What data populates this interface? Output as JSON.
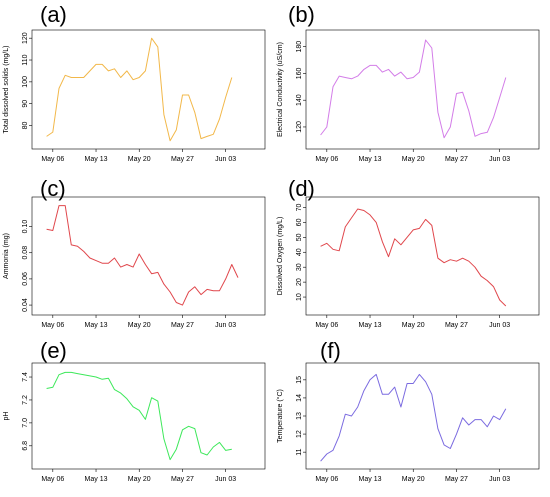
{
  "colors": {
    "a": "#f2b84a",
    "b": "#d37de8",
    "c": "#e0474c",
    "d": "#e0474c",
    "e": "#3de85a",
    "f": "#7b6be0"
  },
  "chart_data": [
    {
      "id": "a",
      "type": "line",
      "panel_label": "(a)",
      "title": "",
      "xlabel": "",
      "ylabel": "Total dissolved solids (mg/L)",
      "x_ticks": [
        "May 06",
        "May 13",
        "May 20",
        "May 27",
        "Jun 03"
      ],
      "y_ticks": [
        "80",
        "90",
        "100",
        "110",
        "120"
      ],
      "xlim": [
        -2.4,
        33.4
      ],
      "ylim": [
        72,
        121
      ],
      "grid": false,
      "series": [
        {
          "values": [
            {
              "x": -1.0,
              "y": 75
            },
            {
              "x": 0.0,
              "y": 77
            },
            {
              "x": 1.0,
              "y": 97
            },
            {
              "x": 2.0,
              "y": 103
            },
            {
              "x": 3.0,
              "y": 102
            },
            {
              "x": 4.0,
              "y": 102
            },
            {
              "x": 5.0,
              "y": 102
            },
            {
              "x": 6.0,
              "y": 105
            },
            {
              "x": 7.0,
              "y": 108
            },
            {
              "x": 8.0,
              "y": 108
            },
            {
              "x": 9.0,
              "y": 105
            },
            {
              "x": 10.0,
              "y": 106
            },
            {
              "x": 11.0,
              "y": 102
            },
            {
              "x": 12.0,
              "y": 105
            },
            {
              "x": 13.0,
              "y": 101
            },
            {
              "x": 14.0,
              "y": 102
            },
            {
              "x": 15.0,
              "y": 105
            },
            {
              "x": 16.0,
              "y": 120
            },
            {
              "x": 17.0,
              "y": 116
            },
            {
              "x": 18.0,
              "y": 85
            },
            {
              "x": 19.0,
              "y": 73
            },
            {
              "x": 20.0,
              "y": 78
            },
            {
              "x": 21.0,
              "y": 94
            },
            {
              "x": 22.0,
              "y": 94
            },
            {
              "x": 23.0,
              "y": 86
            },
            {
              "x": 24.0,
              "y": 74
            },
            {
              "x": 25.0,
              "y": 75
            },
            {
              "x": 26.0,
              "y": 76
            },
            {
              "x": 27.0,
              "y": 83
            },
            {
              "x": 28.0,
              "y": 93
            },
            {
              "x": 29.0,
              "y": 102
            }
          ]
        }
      ]
    },
    {
      "id": "b",
      "type": "line",
      "panel_label": "(b)",
      "title": "",
      "xlabel": "",
      "ylabel": "Electrical Conductivity (uS/cm)",
      "x_ticks": [
        "May 06",
        "May 13",
        "May 20",
        "May 27",
        "Jun 03"
      ],
      "y_ticks": [
        "120",
        "140",
        "160",
        "180"
      ],
      "xlim": [
        -2.4,
        33.4
      ],
      "ylim": [
        108,
        188
      ],
      "grid": false,
      "series": [
        {
          "values": [
            {
              "x": -1.0,
              "y": 114
            },
            {
              "x": 0.0,
              "y": 120
            },
            {
              "x": 1.0,
              "y": 150
            },
            {
              "x": 2.0,
              "y": 158
            },
            {
              "x": 3.0,
              "y": 157
            },
            {
              "x": 4.0,
              "y": 156
            },
            {
              "x": 5.0,
              "y": 158
            },
            {
              "x": 6.0,
              "y": 163
            },
            {
              "x": 7.0,
              "y": 166
            },
            {
              "x": 8.0,
              "y": 166
            },
            {
              "x": 9.0,
              "y": 161
            },
            {
              "x": 10.0,
              "y": 163
            },
            {
              "x": 11.0,
              "y": 158
            },
            {
              "x": 12.0,
              "y": 161
            },
            {
              "x": 13.0,
              "y": 156
            },
            {
              "x": 14.0,
              "y": 157
            },
            {
              "x": 15.0,
              "y": 161
            },
            {
              "x": 16.0,
              "y": 185
            },
            {
              "x": 17.0,
              "y": 179
            },
            {
              "x": 18.0,
              "y": 131
            },
            {
              "x": 19.0,
              "y": 112
            },
            {
              "x": 20.0,
              "y": 120
            },
            {
              "x": 21.0,
              "y": 145
            },
            {
              "x": 22.0,
              "y": 146
            },
            {
              "x": 23.0,
              "y": 132
            },
            {
              "x": 24.0,
              "y": 113
            },
            {
              "x": 25.0,
              "y": 115
            },
            {
              "x": 26.0,
              "y": 116
            },
            {
              "x": 27.0,
              "y": 127
            },
            {
              "x": 28.0,
              "y": 142
            },
            {
              "x": 29.0,
              "y": 157
            }
          ]
        }
      ]
    },
    {
      "id": "c",
      "type": "line",
      "panel_label": "(c)",
      "title": "",
      "xlabel": "",
      "ylabel": "Ammonia (mg)",
      "x_ticks": [
        "May 06",
        "May 13",
        "May 20",
        "May 27",
        "Jun 03"
      ],
      "y_ticks": [
        "0.04",
        "0.06",
        "0.08",
        "0.10"
      ],
      "xlim": [
        -2.4,
        33.4
      ],
      "ylim": [
        0.037,
        0.118
      ],
      "grid": false,
      "series": [
        {
          "values": [
            {
              "x": -1.0,
              "y": 0.098
            },
            {
              "x": 0.0,
              "y": 0.097
            },
            {
              "x": 1.0,
              "y": 0.116
            },
            {
              "x": 2.0,
              "y": 0.116
            },
            {
              "x": 3.0,
              "y": 0.086
            },
            {
              "x": 4.0,
              "y": 0.085
            },
            {
              "x": 5.0,
              "y": 0.081
            },
            {
              "x": 6.0,
              "y": 0.076
            },
            {
              "x": 7.0,
              "y": 0.074
            },
            {
              "x": 8.0,
              "y": 0.072
            },
            {
              "x": 9.0,
              "y": 0.072
            },
            {
              "x": 10.0,
              "y": 0.076
            },
            {
              "x": 11.0,
              "y": 0.069
            },
            {
              "x": 12.0,
              "y": 0.071
            },
            {
              "x": 13.0,
              "y": 0.069
            },
            {
              "x": 14.0,
              "y": 0.079
            },
            {
              "x": 15.0,
              "y": 0.071
            },
            {
              "x": 16.0,
              "y": 0.064
            },
            {
              "x": 17.0,
              "y": 0.065
            },
            {
              "x": 18.0,
              "y": 0.056
            },
            {
              "x": 19.0,
              "y": 0.05
            },
            {
              "x": 20.0,
              "y": 0.042
            },
            {
              "x": 21.0,
              "y": 0.04
            },
            {
              "x": 22.0,
              "y": 0.05
            },
            {
              "x": 23.0,
              "y": 0.054
            },
            {
              "x": 24.0,
              "y": 0.048
            },
            {
              "x": 25.0,
              "y": 0.052
            },
            {
              "x": 26.0,
              "y": 0.051
            },
            {
              "x": 27.0,
              "y": 0.051
            },
            {
              "x": 28.0,
              "y": 0.06
            },
            {
              "x": 29.0,
              "y": 0.071
            },
            {
              "x": 30.0,
              "y": 0.061
            }
          ]
        }
      ]
    },
    {
      "id": "d",
      "type": "line",
      "panel_label": "(d)",
      "title": "",
      "xlabel": "",
      "ylabel": "Dissolved Oxygen (mg/L)",
      "x_ticks": [
        "May 06",
        "May 13",
        "May 20",
        "May 27",
        "Jun 03"
      ],
      "y_ticks": [
        "10",
        "20",
        "30",
        "40",
        "50",
        "60",
        "70"
      ],
      "xlim": [
        -2.4,
        33.4
      ],
      "ylim": [
        2,
        73
      ],
      "grid": false,
      "series": [
        {
          "values": [
            {
              "x": -1.0,
              "y": 44
            },
            {
              "x": 0.0,
              "y": 46
            },
            {
              "x": 1.0,
              "y": 42
            },
            {
              "x": 2.0,
              "y": 41
            },
            {
              "x": 3.0,
              "y": 57
            },
            {
              "x": 4.0,
              "y": 63
            },
            {
              "x": 5.0,
              "y": 69
            },
            {
              "x": 6.0,
              "y": 68
            },
            {
              "x": 7.0,
              "y": 65
            },
            {
              "x": 8.0,
              "y": 60
            },
            {
              "x": 9.0,
              "y": 47
            },
            {
              "x": 10.0,
              "y": 37
            },
            {
              "x": 11.0,
              "y": 49
            },
            {
              "x": 12.0,
              "y": 45
            },
            {
              "x": 13.0,
              "y": 50
            },
            {
              "x": 14.0,
              "y": 55
            },
            {
              "x": 15.0,
              "y": 56
            },
            {
              "x": 16.0,
              "y": 62
            },
            {
              "x": 17.0,
              "y": 58
            },
            {
              "x": 18.0,
              "y": 36
            },
            {
              "x": 19.0,
              "y": 33
            },
            {
              "x": 20.0,
              "y": 35
            },
            {
              "x": 21.0,
              "y": 34
            },
            {
              "x": 22.0,
              "y": 36
            },
            {
              "x": 23.0,
              "y": 34
            },
            {
              "x": 24.0,
              "y": 30
            },
            {
              "x": 25.0,
              "y": 24
            },
            {
              "x": 26.0,
              "y": 21
            },
            {
              "x": 27.0,
              "y": 17
            },
            {
              "x": 28.0,
              "y": 8
            },
            {
              "x": 29.0,
              "y": 4
            }
          ]
        }
      ]
    },
    {
      "id": "e",
      "type": "line",
      "panel_label": "(e)",
      "title": "",
      "xlabel": "",
      "ylabel": "pH",
      "x_ticks": [
        "May 06",
        "May 13",
        "May 20",
        "May 27",
        "Jun 03"
      ],
      "y_ticks": [
        "6.8",
        "7.0",
        "7.2",
        "7.4"
      ],
      "xlim": [
        -2.4,
        33.4
      ],
      "ylim": [
        6.65,
        7.47
      ],
      "grid": false,
      "series": [
        {
          "values": [
            {
              "x": -1.0,
              "y": 7.3
            },
            {
              "x": 0.0,
              "y": 7.31
            },
            {
              "x": 1.0,
              "y": 7.42
            },
            {
              "x": 2.0,
              "y": 7.44
            },
            {
              "x": 3.0,
              "y": 7.44
            },
            {
              "x": 4.0,
              "y": 7.43
            },
            {
              "x": 5.0,
              "y": 7.42
            },
            {
              "x": 6.0,
              "y": 7.41
            },
            {
              "x": 7.0,
              "y": 7.4
            },
            {
              "x": 8.0,
              "y": 7.38
            },
            {
              "x": 9.0,
              "y": 7.39
            },
            {
              "x": 10.0,
              "y": 7.29
            },
            {
              "x": 11.0,
              "y": 7.26
            },
            {
              "x": 12.0,
              "y": 7.21
            },
            {
              "x": 13.0,
              "y": 7.14
            },
            {
              "x": 14.0,
              "y": 7.11
            },
            {
              "x": 15.0,
              "y": 7.03
            },
            {
              "x": 16.0,
              "y": 7.22
            },
            {
              "x": 17.0,
              "y": 7.19
            },
            {
              "x": 18.0,
              "y": 6.86
            },
            {
              "x": 19.0,
              "y": 6.68
            },
            {
              "x": 20.0,
              "y": 6.77
            },
            {
              "x": 21.0,
              "y": 6.94
            },
            {
              "x": 22.0,
              "y": 6.97
            },
            {
              "x": 23.0,
              "y": 6.95
            },
            {
              "x": 24.0,
              "y": 6.74
            },
            {
              "x": 25.0,
              "y": 6.72
            },
            {
              "x": 26.0,
              "y": 6.79
            },
            {
              "x": 27.0,
              "y": 6.83
            },
            {
              "x": 28.0,
              "y": 6.76
            },
            {
              "x": 29.0,
              "y": 6.77
            }
          ]
        }
      ]
    },
    {
      "id": "f",
      "type": "line",
      "panel_label": "(f)",
      "title": "",
      "xlabel": "",
      "ylabel": "Temperature (°C)",
      "x_ticks": [
        "May 06",
        "May 13",
        "May 20",
        "May 27",
        "Jun 03"
      ],
      "y_ticks": [
        "11",
        "12",
        "13",
        "14",
        "15"
      ],
      "xlim": [
        -2.4,
        33.4
      ],
      "ylim": [
        10.4,
        15.6
      ],
      "grid": false,
      "series": [
        {
          "values": [
            {
              "x": -1.0,
              "y": 10.5
            },
            {
              "x": 0.0,
              "y": 10.9
            },
            {
              "x": 1.0,
              "y": 11.1
            },
            {
              "x": 2.0,
              "y": 11.9
            },
            {
              "x": 3.0,
              "y": 13.1
            },
            {
              "x": 4.0,
              "y": 13.0
            },
            {
              "x": 5.0,
              "y": 13.5
            },
            {
              "x": 6.0,
              "y": 14.4
            },
            {
              "x": 7.0,
              "y": 15.0
            },
            {
              "x": 8.0,
              "y": 15.3
            },
            {
              "x": 9.0,
              "y": 14.2
            },
            {
              "x": 10.0,
              "y": 14.2
            },
            {
              "x": 11.0,
              "y": 14.6
            },
            {
              "x": 12.0,
              "y": 13.5
            },
            {
              "x": 13.0,
              "y": 14.8
            },
            {
              "x": 14.0,
              "y": 14.8
            },
            {
              "x": 15.0,
              "y": 15.3
            },
            {
              "x": 16.0,
              "y": 14.9
            },
            {
              "x": 17.0,
              "y": 14.2
            },
            {
              "x": 18.0,
              "y": 12.3
            },
            {
              "x": 19.0,
              "y": 11.4
            },
            {
              "x": 20.0,
              "y": 11.2
            },
            {
              "x": 21.0,
              "y": 12.0
            },
            {
              "x": 22.0,
              "y": 12.9
            },
            {
              "x": 23.0,
              "y": 12.5
            },
            {
              "x": 24.0,
              "y": 12.8
            },
            {
              "x": 25.0,
              "y": 12.8
            },
            {
              "x": 26.0,
              "y": 12.4
            },
            {
              "x": 27.0,
              "y": 13.0
            },
            {
              "x": 28.0,
              "y": 12.8
            },
            {
              "x": 29.0,
              "y": 13.4
            }
          ]
        }
      ]
    }
  ]
}
